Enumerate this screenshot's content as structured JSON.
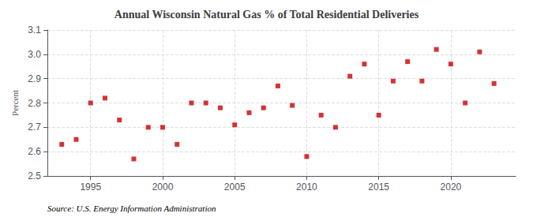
{
  "chart_data": {
    "type": "scatter",
    "title": "Annual Wisconsin Natural Gas % of Total Residential Deliveries",
    "ylabel": "Percent",
    "annotations": [
      "Source: U.S. Energy Information Administration"
    ],
    "x": [
      1993,
      1994,
      1995,
      1996,
      1997,
      1998,
      1999,
      2000,
      2001,
      2002,
      2003,
      2004,
      2005,
      2006,
      2007,
      2008,
      2009,
      2010,
      2011,
      2012,
      2013,
      2014,
      2015,
      2016,
      2017,
      2018,
      2019,
      2020,
      2021,
      2022,
      2023
    ],
    "values": [
      2.63,
      2.65,
      2.8,
      2.82,
      2.73,
      2.57,
      2.7,
      2.7,
      2.63,
      2.8,
      2.8,
      2.78,
      2.71,
      2.76,
      2.78,
      2.87,
      2.79,
      2.58,
      2.75,
      2.7,
      2.91,
      2.96,
      2.75,
      2.89,
      2.97,
      2.89,
      3.02,
      2.96,
      2.8,
      3.01,
      2.88
    ],
    "color": "#cc0000",
    "marker": "square",
    "xlim": [
      1992.0,
      2024.5
    ],
    "xticks": [
      1995,
      2000,
      2005,
      2010,
      2015,
      2020
    ],
    "ylim": [
      2.5,
      3.1
    ],
    "yticks": [
      2.5,
      2.6,
      2.7,
      2.8,
      2.9,
      {
        "value": 3.0,
        "label": "3.0"
      },
      3.1
    ],
    "grid": true
  }
}
